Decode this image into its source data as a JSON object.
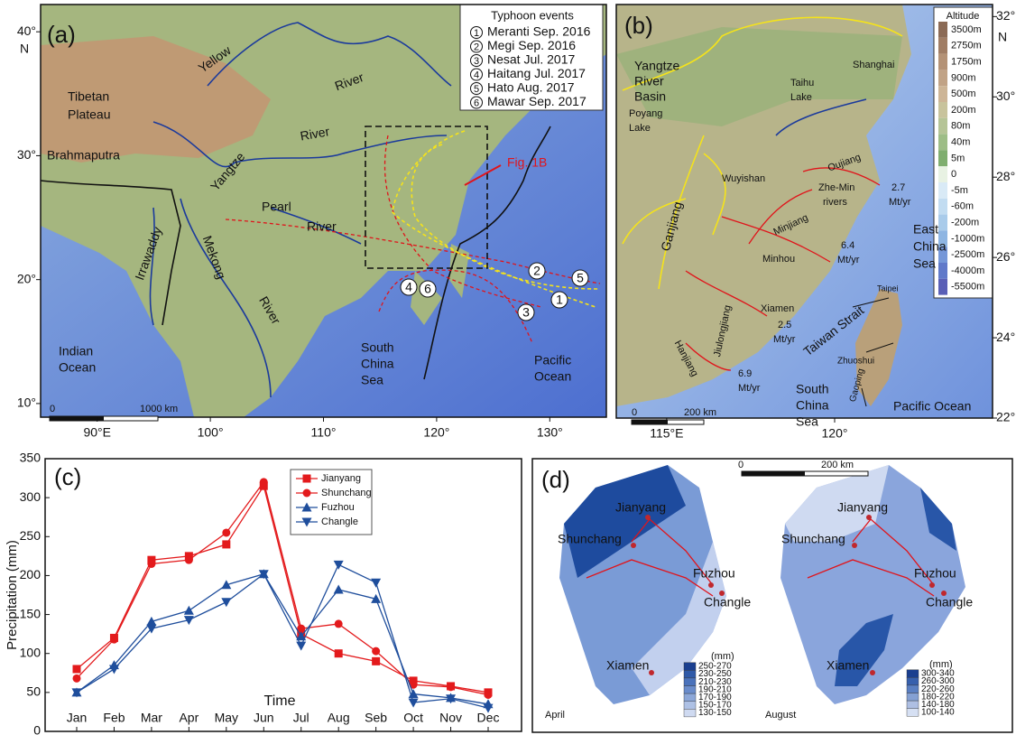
{
  "panel_a": {
    "label": "(a)",
    "legend_title": "Typhoon events",
    "typhoons": [
      {
        "number": "1",
        "name": "Meranti Sep. 2016"
      },
      {
        "number": "2",
        "name": "Megi Sep. 2016"
      },
      {
        "number": "3",
        "name": "Nesat Jul. 2017"
      },
      {
        "number": "4",
        "name": "Haitang Jul. 2017"
      },
      {
        "number": "5",
        "name": "Hato Aug. 2017"
      },
      {
        "number": "6",
        "name": "Mawar Sep. 2017"
      }
    ],
    "labels": [
      "Tibetan",
      "Plateau",
      "Yellow",
      "River",
      "Brahmaputra",
      "Yangtze",
      "River",
      "Pearl",
      "River",
      "Irrawaddy",
      "Mekong",
      "River",
      "Fig. 1B",
      "Indian",
      "Ocean",
      "South",
      "China",
      "Sea",
      "Pacific",
      "Ocean"
    ],
    "scale_bar": [
      "0",
      "1000 km"
    ],
    "lonlim": [
      85,
      135
    ],
    "latlim": [
      8.9,
      42.2
    ],
    "lonticks": [
      {
        "value": 90,
        "label": "90°E"
      },
      {
        "value": 100,
        "label": "100°"
      },
      {
        "value": 110,
        "label": "110°"
      },
      {
        "value": 120,
        "label": "120°"
      },
      {
        "value": 130,
        "label": "130°"
      }
    ],
    "latticks": [
      {
        "value": 10,
        "label": "10°"
      },
      {
        "value": 20,
        "label": "20°"
      },
      {
        "value": 30,
        "label": "30°"
      },
      {
        "value": 40,
        "label": "40°"
      }
    ],
    "lat_unit": "N"
  },
  "panel_b": {
    "label": "(b)",
    "labels": [
      "Yangtze",
      "River",
      "Basin",
      "Taihu",
      "Lake",
      "Shanghai",
      "Poyang",
      "Lake",
      "Wuyishan",
      "Oujiang",
      "2.7",
      "Mt/yr",
      "Zhe-Min",
      "rivers",
      "Minjiang",
      "6.4",
      "Mt/yr",
      "Minhou",
      "East",
      "China",
      "Sea",
      "Ganjiang",
      "Xiamen",
      "2.5",
      "Mt/yr",
      "Jiulongjiang",
      "Hanjiang",
      "6.9",
      "Mt/yr",
      "Taiwan Strait",
      "Taipei",
      "Zhuoshui",
      "Gaoping",
      "South",
      "China",
      "Sea",
      "Pacific Ocean"
    ],
    "scale_bar": [
      "0",
      "200 km"
    ],
    "altitude_title": "Altitude",
    "altitude_levels": [
      "3500m",
      "2750m",
      "1750m",
      "900m",
      "500m",
      "200m",
      "80m",
      "40m",
      "5m",
      "0",
      "-5m",
      "-60m",
      "-200m",
      "-1000m",
      "-2500m",
      "-4000m",
      "-5500m"
    ],
    "lonlim": [
      113.5,
      124.7
    ],
    "latlim": [
      22,
      32.3
    ],
    "lonticks": [
      {
        "value": 115,
        "label": "115°E"
      },
      {
        "value": 120,
        "label": "120°"
      }
    ],
    "latticks": [
      {
        "value": 22,
        "label": "22°"
      },
      {
        "value": 24,
        "label": "24°"
      },
      {
        "value": 26,
        "label": "26°"
      },
      {
        "value": 28,
        "label": "28°"
      },
      {
        "value": 30,
        "label": "30°"
      },
      {
        "value": 32,
        "label": "32°"
      }
    ],
    "lat_unit": "N"
  },
  "chart_data": {
    "type": "line",
    "panel_label": "(c)",
    "x_label": "Time",
    "y_label": "Precipitation (mm)",
    "categories": [
      "Jan",
      "Feb",
      "Mar",
      "Apr",
      "May",
      "Jun",
      "Jul",
      "Aug",
      "Seb",
      "Oct",
      "Nov",
      "Dec"
    ],
    "series": [
      {
        "name": "Jianyang",
        "color": "#e31a1c",
        "marker": "square",
        "values": [
          80,
          120,
          220,
          225,
          240,
          315,
          125,
          100,
          90,
          65,
          58,
          50
        ]
      },
      {
        "name": "Shunchang",
        "color": "#e31a1c",
        "marker": "circle",
        "values": [
          68,
          118,
          215,
          220,
          255,
          320,
          132,
          138,
          103,
          60,
          57,
          47
        ]
      },
      {
        "name": "Fuzhou",
        "color": "#1f4e9c",
        "marker": "triangle-up",
        "values": [
          50,
          85,
          141,
          155,
          188,
          202,
          122,
          182,
          170,
          48,
          43,
          35
        ]
      },
      {
        "name": "Changle",
        "color": "#1f4e9c",
        "marker": "triangle-down",
        "values": [
          50,
          80,
          132,
          143,
          166,
          202,
          110,
          214,
          191,
          37,
          42,
          30
        ]
      }
    ],
    "ylim": [
      0,
      350
    ],
    "yticks": [
      0,
      50,
      100,
      150,
      200,
      250,
      300,
      350
    ]
  },
  "panel_d": {
    "label": "(d)",
    "scale_bar": [
      "0",
      "200 km"
    ],
    "april": {
      "title": "April",
      "unit": "(mm)",
      "stations": [
        "Jianyang",
        "Shunchang",
        "Fuzhou",
        "Changle",
        "Xiamen"
      ],
      "classes": [
        "250-270",
        "230-250",
        "210-230",
        "190-210",
        "170-190",
        "150-170",
        "130-150"
      ]
    },
    "august": {
      "title": "August",
      "unit": "(mm)",
      "stations": [
        "Jianyang",
        "Shunchang",
        "Fuzhou",
        "Changle",
        "Xiamen"
      ],
      "classes": [
        "300-340",
        "260-300",
        "220-260",
        "180-220",
        "140-180",
        "100-140"
      ]
    }
  }
}
